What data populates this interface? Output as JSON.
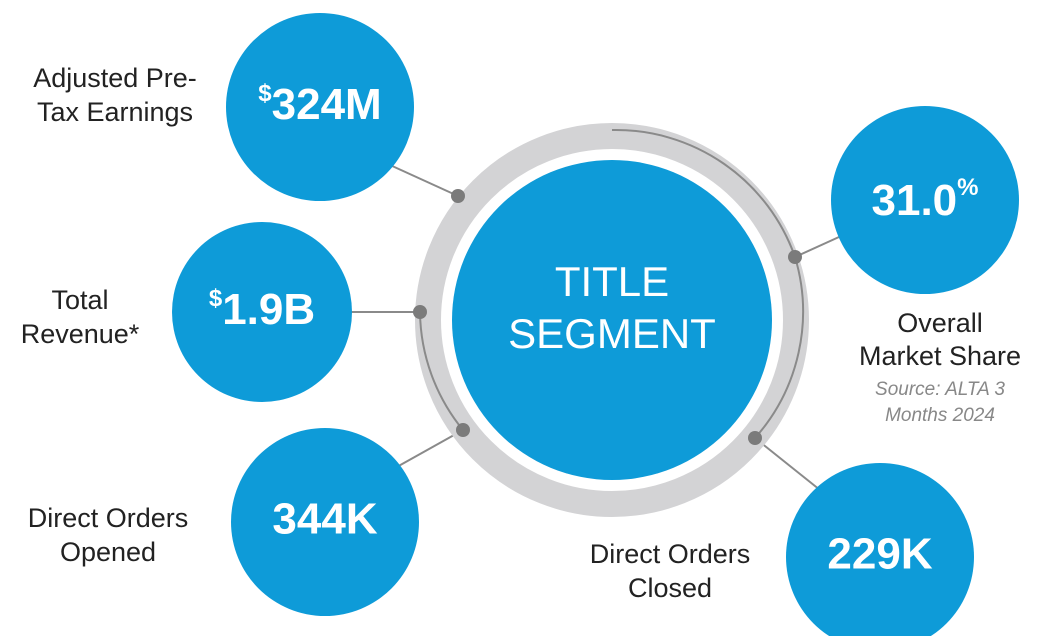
{
  "center": {
    "lines": [
      "TITLE",
      "SEGMENT"
    ]
  },
  "metrics": [
    {
      "label": [
        "Adjusted Pre-",
        "Tax Earnings"
      ],
      "prefix": "$",
      "value": "324M"
    },
    {
      "label": [
        "Total",
        "Revenue*"
      ],
      "prefix": "$",
      "value": "1.9B"
    },
    {
      "label": [
        "Direct Orders",
        "Opened"
      ],
      "value": "344K"
    },
    {
      "label": [
        "Overall",
        "Market Share"
      ],
      "value": "31.0",
      "suffix": "%",
      "source": [
        "Source: ALTA 3",
        "Months 2024"
      ]
    },
    {
      "label": [
        "Direct Orders",
        "Closed"
      ],
      "value": "229K"
    }
  ]
}
